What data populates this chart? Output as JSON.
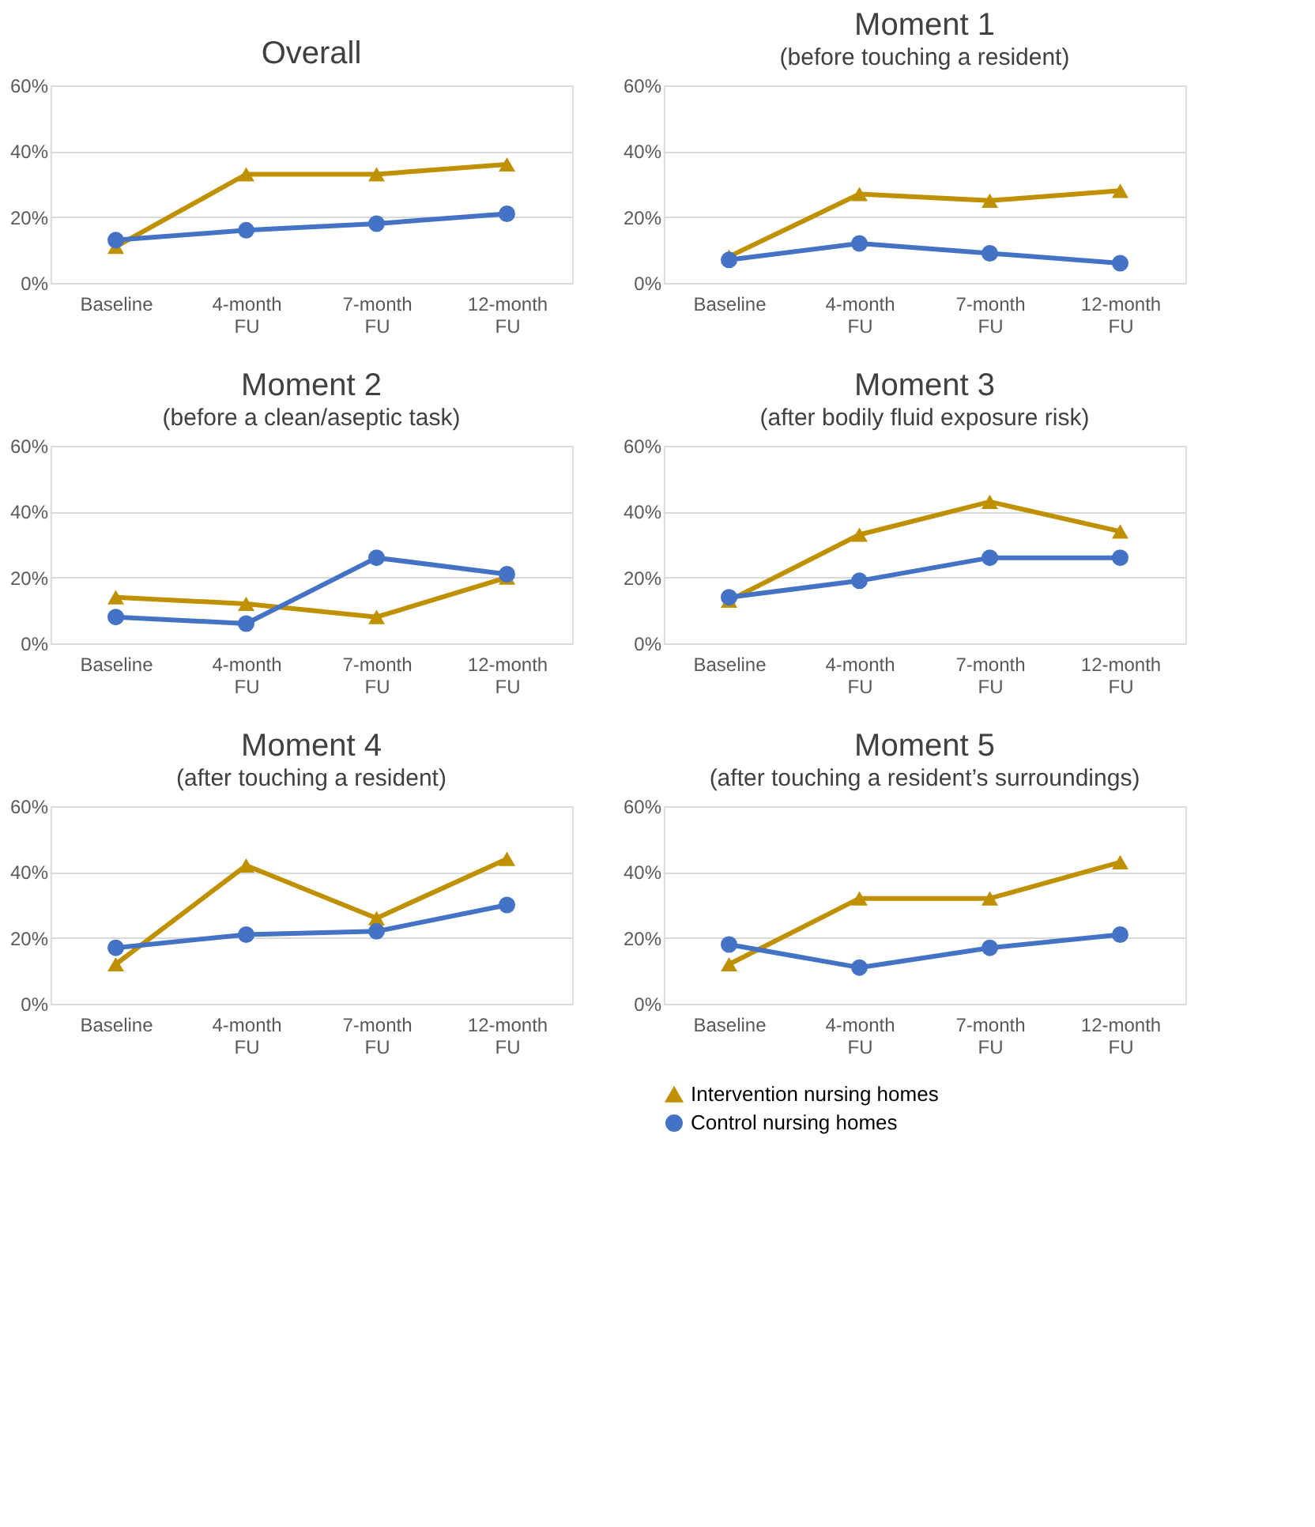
{
  "chart_data": [
    {
      "type": "line",
      "title": "Overall",
      "categories": [
        "Baseline",
        "4-month FU",
        "7-month FU",
        "12-month FU"
      ],
      "ylim": [
        0,
        60
      ],
      "yticks": [
        {
          "value": 0,
          "label": "0%"
        },
        {
          "value": 20,
          "label": "20%"
        },
        {
          "value": 40,
          "label": "40%"
        },
        {
          "value": 60,
          "label": "60%"
        }
      ],
      "grid": "y",
      "legend": false,
      "series": [
        {
          "color": "#bf9000",
          "marker": "triangle",
          "values": [
            11,
            33,
            33,
            36
          ]
        },
        {
          "color": "#4472c4",
          "marker": "circle",
          "values": [
            13,
            16,
            18,
            21
          ]
        }
      ]
    },
    {
      "type": "line",
      "title": "Moment 1",
      "subtitle": "(before touching a resident)",
      "categories": [
        "Baseline",
        "4-month FU",
        "7-month FU",
        "12-month FU"
      ],
      "ylim": [
        0,
        60
      ],
      "yticks": [
        {
          "value": 0,
          "label": "0%"
        },
        {
          "value": 20,
          "label": "20%"
        },
        {
          "value": 40,
          "label": "40%"
        },
        {
          "value": 60,
          "label": "60%"
        }
      ],
      "grid": "y",
      "legend": false,
      "series": [
        {
          "color": "#bf9000",
          "marker": "triangle",
          "values": [
            8,
            27,
            25,
            28
          ]
        },
        {
          "color": "#4472c4",
          "marker": "circle",
          "values": [
            7,
            12,
            9,
            6
          ]
        }
      ]
    },
    {
      "type": "line",
      "title": "Moment 2",
      "subtitle": "(before a clean/aseptic task)",
      "categories": [
        "Baseline",
        "4-month FU",
        "7-month FU",
        "12-month FU"
      ],
      "ylim": [
        0,
        60
      ],
      "yticks": [
        {
          "value": 0,
          "label": "0%"
        },
        {
          "value": 20,
          "label": "20%"
        },
        {
          "value": 40,
          "label": "40%"
        },
        {
          "value": 60,
          "label": "60%"
        }
      ],
      "grid": "y",
      "legend": false,
      "series": [
        {
          "color": "#bf9000",
          "marker": "triangle",
          "values": [
            14,
            12,
            8,
            20
          ]
        },
        {
          "color": "#4472c4",
          "marker": "circle",
          "values": [
            8,
            6,
            26,
            21
          ]
        }
      ]
    },
    {
      "type": "line",
      "title": "Moment 3",
      "subtitle": "(after bodily fluid exposure risk)",
      "categories": [
        "Baseline",
        "4-month FU",
        "7-month FU",
        "12-month FU"
      ],
      "ylim": [
        0,
        60
      ],
      "yticks": [
        {
          "value": 0,
          "label": "0%"
        },
        {
          "value": 20,
          "label": "20%"
        },
        {
          "value": 40,
          "label": "40%"
        },
        {
          "value": 60,
          "label": "60%"
        }
      ],
      "grid": "y",
      "legend": false,
      "series": [
        {
          "color": "#bf9000",
          "marker": "triangle",
          "values": [
            13,
            33,
            43,
            34
          ]
        },
        {
          "color": "#4472c4",
          "marker": "circle",
          "values": [
            14,
            19,
            26,
            26
          ]
        }
      ]
    },
    {
      "type": "line",
      "title": "Moment 4",
      "subtitle": "(after touching a resident)",
      "categories": [
        "Baseline",
        "4-month FU",
        "7-month FU",
        "12-month FU"
      ],
      "ylim": [
        0,
        60
      ],
      "yticks": [
        {
          "value": 0,
          "label": "0%"
        },
        {
          "value": 20,
          "label": "20%"
        },
        {
          "value": 40,
          "label": "40%"
        },
        {
          "value": 60,
          "label": "60%"
        }
      ],
      "grid": "y",
      "legend": false,
      "series": [
        {
          "color": "#bf9000",
          "marker": "triangle",
          "values": [
            12,
            42,
            26,
            44
          ]
        },
        {
          "color": "#4472c4",
          "marker": "circle",
          "values": [
            17,
            21,
            22,
            30
          ]
        }
      ]
    },
    {
      "type": "line",
      "title": "Moment 5",
      "subtitle": "(after touching a resident’s surroundings)",
      "categories": [
        "Baseline",
        "4-month FU",
        "7-month FU",
        "12-month FU"
      ],
      "ylim": [
        0,
        60
      ],
      "yticks": [
        {
          "value": 0,
          "label": "0%"
        },
        {
          "value": 20,
          "label": "20%"
        },
        {
          "value": 40,
          "label": "40%"
        },
        {
          "value": 60,
          "label": "60%"
        }
      ],
      "grid": "y",
      "legend": "bottom",
      "series": [
        {
          "name": "Intervention nursing homes",
          "color": "#bf9000",
          "marker": "triangle",
          "values": [
            12,
            32,
            32,
            43
          ]
        },
        {
          "name": "Control nursing homes",
          "color": "#4472c4",
          "marker": "circle",
          "values": [
            18,
            11,
            17,
            21
          ]
        }
      ]
    }
  ]
}
